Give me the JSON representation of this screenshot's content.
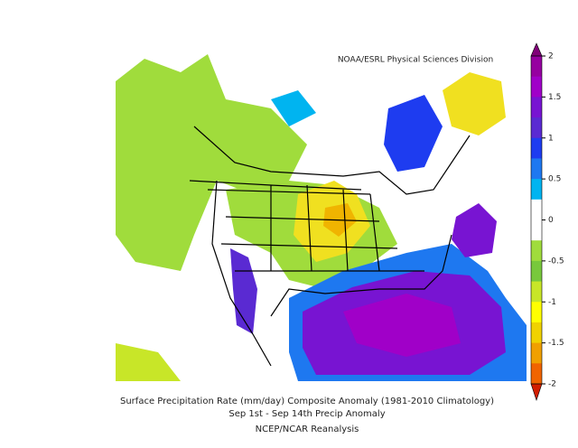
{
  "credit": "NOAA/ESRL Physical Sciences Division",
  "colorbar": {
    "ticks": [
      2,
      1.5,
      1,
      0.5,
      0,
      -0.5,
      -1,
      -1.5,
      -2
    ],
    "over_color": "#800078",
    "under_color": "#d21e00",
    "colors": [
      "#9600a0",
      "#a000c8",
      "#7814d2",
      "#5a2ad2",
      "#1e3cf0",
      "#1e78f0",
      "#00b4f0",
      "#ffffff",
      "#ffffff",
      "#a0dc3c",
      "#78c83c",
      "#c8e628",
      "#ffff00",
      "#f0d200",
      "#f0a000",
      "#f06400"
    ]
  },
  "caption": [
    "Surface Precipitation Rate (mm/day) Composite Anomaly (1981-2010 Climatology)",
    "Sep 1st - Sep 14th Precip Anomaly",
    "NCEP/NCAR Reanalysis"
  ]
}
